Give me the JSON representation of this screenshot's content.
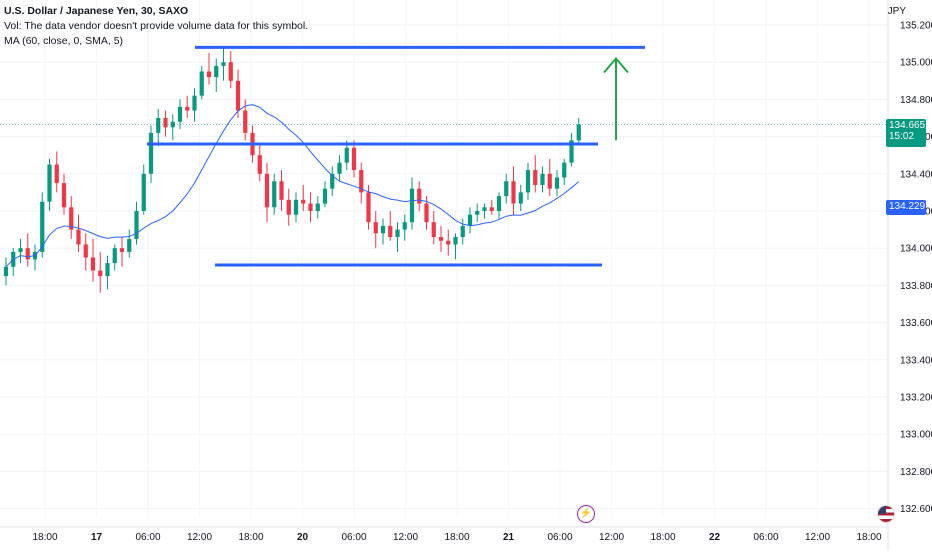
{
  "legend": {
    "symbol": "U.S. Dollar / Japanese Yen, 30, SAXO",
    "vol": "Vol: The data vendor doesn't provide volume data for this symbol.",
    "ma": "MA (60, close, 0, SMA, 5)"
  },
  "currency_label": "JPY",
  "price_tag": {
    "price": "134.665",
    "countdown": "15:02",
    "color": "#089981"
  },
  "ma_tag": {
    "price": "134.229",
    "color": "#2962ff"
  },
  "icons": [
    "lightning-icon",
    "us-flag-icon"
  ],
  "colors": {
    "up": "#089981",
    "down": "#f23645",
    "ma": "#2962ff",
    "annotation_line": "#2962ff",
    "arrow": "#22a447"
  },
  "chart_data": {
    "type": "candlestick",
    "y_axis_ticks": [
      "135.200",
      "135.000",
      "134.800",
      "134.600",
      "134.400",
      "134.200",
      "134.000",
      "133.800",
      "133.600",
      "133.400",
      "133.200",
      "133.000",
      "132.800",
      "132.600"
    ],
    "ylim": [
      132.55,
      135.25
    ],
    "x_axis_ticks": [
      "18:00",
      "17",
      "06:00",
      "12:00",
      "18:00",
      "20",
      "06:00",
      "12:00",
      "18:00",
      "21",
      "06:00",
      "12:00",
      "18:00",
      "22",
      "06:00",
      "12:00",
      "18:00"
    ],
    "current_price": 134.665,
    "ma_last": 134.229,
    "candles": [
      [
        133.85,
        133.95,
        133.8,
        133.9
      ],
      [
        133.9,
        134.0,
        133.85,
        133.98
      ],
      [
        133.98,
        134.05,
        133.92,
        134.0
      ],
      [
        134.0,
        134.08,
        133.9,
        133.94
      ],
      [
        133.94,
        134.02,
        133.88,
        133.98
      ],
      [
        133.98,
        134.3,
        133.95,
        134.25
      ],
      [
        134.25,
        134.48,
        134.2,
        134.45
      ],
      [
        134.45,
        134.52,
        134.3,
        134.35
      ],
      [
        134.35,
        134.4,
        134.18,
        134.22
      ],
      [
        134.22,
        134.28,
        134.05,
        134.1
      ],
      [
        134.1,
        134.18,
        133.98,
        134.02
      ],
      [
        134.02,
        134.08,
        133.88,
        133.95
      ],
      [
        133.95,
        134.05,
        133.82,
        133.88
      ],
      [
        133.88,
        133.98,
        133.76,
        133.85
      ],
      [
        133.85,
        133.96,
        133.78,
        133.92
      ],
      [
        133.92,
        134.02,
        133.88,
        134.0
      ],
      [
        134.0,
        134.06,
        133.9,
        133.98
      ],
      [
        133.98,
        134.1,
        133.95,
        134.05
      ],
      [
        134.05,
        134.25,
        134.02,
        134.2
      ],
      [
        134.2,
        134.45,
        134.18,
        134.4
      ],
      [
        134.4,
        134.66,
        134.35,
        134.62
      ],
      [
        134.62,
        134.75,
        134.55,
        134.7
      ],
      [
        134.7,
        134.74,
        134.6,
        134.65
      ],
      [
        134.65,
        134.72,
        134.58,
        134.68
      ],
      [
        134.68,
        134.8,
        134.64,
        134.76
      ],
      [
        134.76,
        134.82,
        134.7,
        134.74
      ],
      [
        134.74,
        134.86,
        134.68,
        134.82
      ],
      [
        134.82,
        134.98,
        134.8,
        134.95
      ],
      [
        134.95,
        135.05,
        134.88,
        134.92
      ],
      [
        134.92,
        135.02,
        134.84,
        134.98
      ],
      [
        134.98,
        135.08,
        134.9,
        135.0
      ],
      [
        135.0,
        135.06,
        134.86,
        134.9
      ],
      [
        134.9,
        134.96,
        134.7,
        134.74
      ],
      [
        134.74,
        134.8,
        134.58,
        134.62
      ],
      [
        134.62,
        134.66,
        134.46,
        134.5
      ],
      [
        134.5,
        134.56,
        134.36,
        134.4
      ],
      [
        134.4,
        134.46,
        134.14,
        134.22
      ],
      [
        134.22,
        134.4,
        134.18,
        134.36
      ],
      [
        134.36,
        134.42,
        134.2,
        134.26
      ],
      [
        134.26,
        134.32,
        134.12,
        134.18
      ],
      [
        134.18,
        134.3,
        134.14,
        134.26
      ],
      [
        134.26,
        134.34,
        134.2,
        134.24
      ],
      [
        134.24,
        134.3,
        134.14,
        134.2
      ],
      [
        134.2,
        134.28,
        134.16,
        134.24
      ],
      [
        134.24,
        134.36,
        134.22,
        134.32
      ],
      [
        134.32,
        134.44,
        134.28,
        134.4
      ],
      [
        134.4,
        134.5,
        134.36,
        134.46
      ],
      [
        134.46,
        134.58,
        134.42,
        134.54
      ],
      [
        134.54,
        134.58,
        134.38,
        134.42
      ],
      [
        134.42,
        134.46,
        134.24,
        134.3
      ],
      [
        134.3,
        134.34,
        134.1,
        134.14
      ],
      [
        134.14,
        134.2,
        134.0,
        134.08
      ],
      [
        134.08,
        134.16,
        134.02,
        134.12
      ],
      [
        134.12,
        134.2,
        134.04,
        134.06
      ],
      [
        134.06,
        134.14,
        133.98,
        134.1
      ],
      [
        134.1,
        134.18,
        134.04,
        134.14
      ],
      [
        134.14,
        134.38,
        134.1,
        134.32
      ],
      [
        134.32,
        134.36,
        134.2,
        134.24
      ],
      [
        134.24,
        134.28,
        134.1,
        134.14
      ],
      [
        134.14,
        134.2,
        134.02,
        134.06
      ],
      [
        134.06,
        134.12,
        133.98,
        134.04
      ],
      [
        134.04,
        134.1,
        133.96,
        134.02
      ],
      [
        134.02,
        134.08,
        133.94,
        134.06
      ],
      [
        134.06,
        134.16,
        134.02,
        134.12
      ],
      [
        134.12,
        134.22,
        134.08,
        134.18
      ],
      [
        134.18,
        134.24,
        134.14,
        134.2
      ],
      [
        134.2,
        134.24,
        134.16,
        134.22
      ],
      [
        134.22,
        134.26,
        134.18,
        134.2
      ],
      [
        134.2,
        134.3,
        134.16,
        134.28
      ],
      [
        134.28,
        134.4,
        134.24,
        134.36
      ],
      [
        134.36,
        134.44,
        134.18,
        134.24
      ],
      [
        134.24,
        134.34,
        134.2,
        134.3
      ],
      [
        134.3,
        134.46,
        134.26,
        134.42
      ],
      [
        134.42,
        134.5,
        134.3,
        134.34
      ],
      [
        134.34,
        134.44,
        134.3,
        134.4
      ],
      [
        134.4,
        134.48,
        134.28,
        134.32
      ],
      [
        134.32,
        134.42,
        134.28,
        134.38
      ],
      [
        134.38,
        134.48,
        134.34,
        134.46
      ],
      [
        134.46,
        134.62,
        134.44,
        134.58
      ],
      [
        134.58,
        134.7,
        134.56,
        134.665
      ]
    ]
  }
}
